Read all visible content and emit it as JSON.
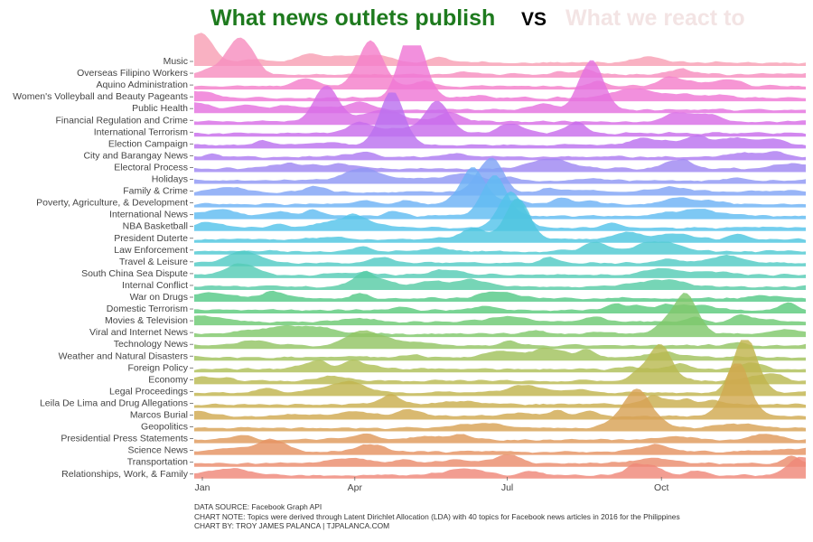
{
  "header": {
    "title_left": "What news outlets publish",
    "vs": "VS",
    "title_right": "What we react to"
  },
  "footer": {
    "source": "DATA SOURCE: Facebook Graph API",
    "note": "CHART NOTE: Topics were derived through Latent Dirichlet Allocation (LDA) with 40 topics for Facebook news articles in 2016 for the Philippines",
    "credit": "CHART BY: TROY JAMES PALANCA | TJPALANCA.COM"
  },
  "chart_data": {
    "type": "area",
    "subtype": "ridgeline",
    "x_range": [
      "2016-01-01",
      "2016-12-31"
    ],
    "x_ticks": [
      "Jan",
      "Apr",
      "Jul",
      "Oct"
    ],
    "categories": [
      "Music",
      "Overseas Filipino Workers",
      "Aquino Administration",
      "Women's Volleyball and Beauty Pageants",
      "Public Health",
      "Financial Regulation and Crime",
      "International Terrorism",
      "Election Campaign",
      "City and Barangay News",
      "Electoral Process",
      "Holidays",
      "Family & Crime",
      "Poverty, Agriculture, & Development",
      "International News",
      "NBA Basketball",
      "President Duterte",
      "Law Enforcement",
      "Travel & Leisure",
      "South China Sea Dispute",
      "Internal Conflict",
      "War on Drugs",
      "Domestic Terrorism",
      "Movies & Television",
      "Viral and Internet News",
      "Technology News",
      "Weather and Natural Disasters",
      "Foreign Policy",
      "Economy",
      "Legal Proceedings",
      "Leila De Lima and Drug Allegations",
      "Marcos Burial",
      "Geopolitics",
      "Presidential Press Statements",
      "Science News",
      "Transportation",
      "Relationships, Work, & Family"
    ],
    "series_colors": [
      "#f8a0b4",
      "#f78fc0",
      "#f47fcb",
      "#ef77d6",
      "#e471df",
      "#d86ee6",
      "#c86deb",
      "#bb72ef",
      "#ad7bf1",
      "#9f88f2",
      "#8f97f4",
      "#80a4f5",
      "#6eb2f5",
      "#60bcf1",
      "#54c3ea",
      "#4ec6df",
      "#4fc9d2",
      "#52cbc5",
      "#55ccb6",
      "#58cca6",
      "#55c987",
      "#5cca7c",
      "#6dc973",
      "#80c86b",
      "#92c564",
      "#a1c25d",
      "#aebf58",
      "#b9ba52",
      "#c1b54e",
      "#c9af4e",
      "#d1a951",
      "#d8a255",
      "#df9a5b",
      "#e59262",
      "#ea8c6c",
      "#ef8779"
    ],
    "peaks": [
      {
        "series": "Music",
        "date": "2016-01-05",
        "intensity": 1.3
      },
      {
        "series": "Overseas Filipino Workers",
        "date": "2016-01-28",
        "intensity": 1.4
      },
      {
        "series": "Aquino Administration",
        "date": "2016-04-15",
        "intensity": 1.8
      },
      {
        "series": "Women's Volleyball and Beauty Pageants",
        "date": "2016-05-10",
        "intensity": 3.2
      },
      {
        "series": "Public Health",
        "date": "2016-08-25",
        "intensity": 2.2
      },
      {
        "series": "Financial Regulation and Crime",
        "date": "2016-03-20",
        "intensity": 1.6
      },
      {
        "series": "International Terrorism",
        "date": "2016-05-25",
        "intensity": 1.4
      },
      {
        "series": "Election Campaign",
        "date": "2016-04-28",
        "intensity": 2.4
      },
      {
        "series": "Family & Crime",
        "date": "2016-06-25",
        "intensity": 1.4
      },
      {
        "series": "Poverty, Agriculture, & Development",
        "date": "2016-06-15",
        "intensity": 1.6
      },
      {
        "series": "International News",
        "date": "2016-06-28",
        "intensity": 1.8
      },
      {
        "series": "NBA Basketball",
        "date": "2016-07-08",
        "intensity": 1.6
      },
      {
        "series": "President Duterte",
        "date": "2016-07-12",
        "intensity": 1.8
      },
      {
        "series": "Viral and Internet News",
        "date": "2016-10-20",
        "intensity": 1.8
      },
      {
        "series": "Economy",
        "date": "2016-10-05",
        "intensity": 1.5
      },
      {
        "series": "Legal Proceedings",
        "date": "2016-11-25",
        "intensity": 2.3
      },
      {
        "series": "Marcos Burial",
        "date": "2016-11-20",
        "intensity": 2.5
      },
      {
        "series": "Geopolitics",
        "date": "2016-09-22",
        "intensity": 1.4
      },
      {
        "series": "Relationships, Work, & Family",
        "date": "2016-12-28",
        "intensity": 0.8
      }
    ]
  }
}
